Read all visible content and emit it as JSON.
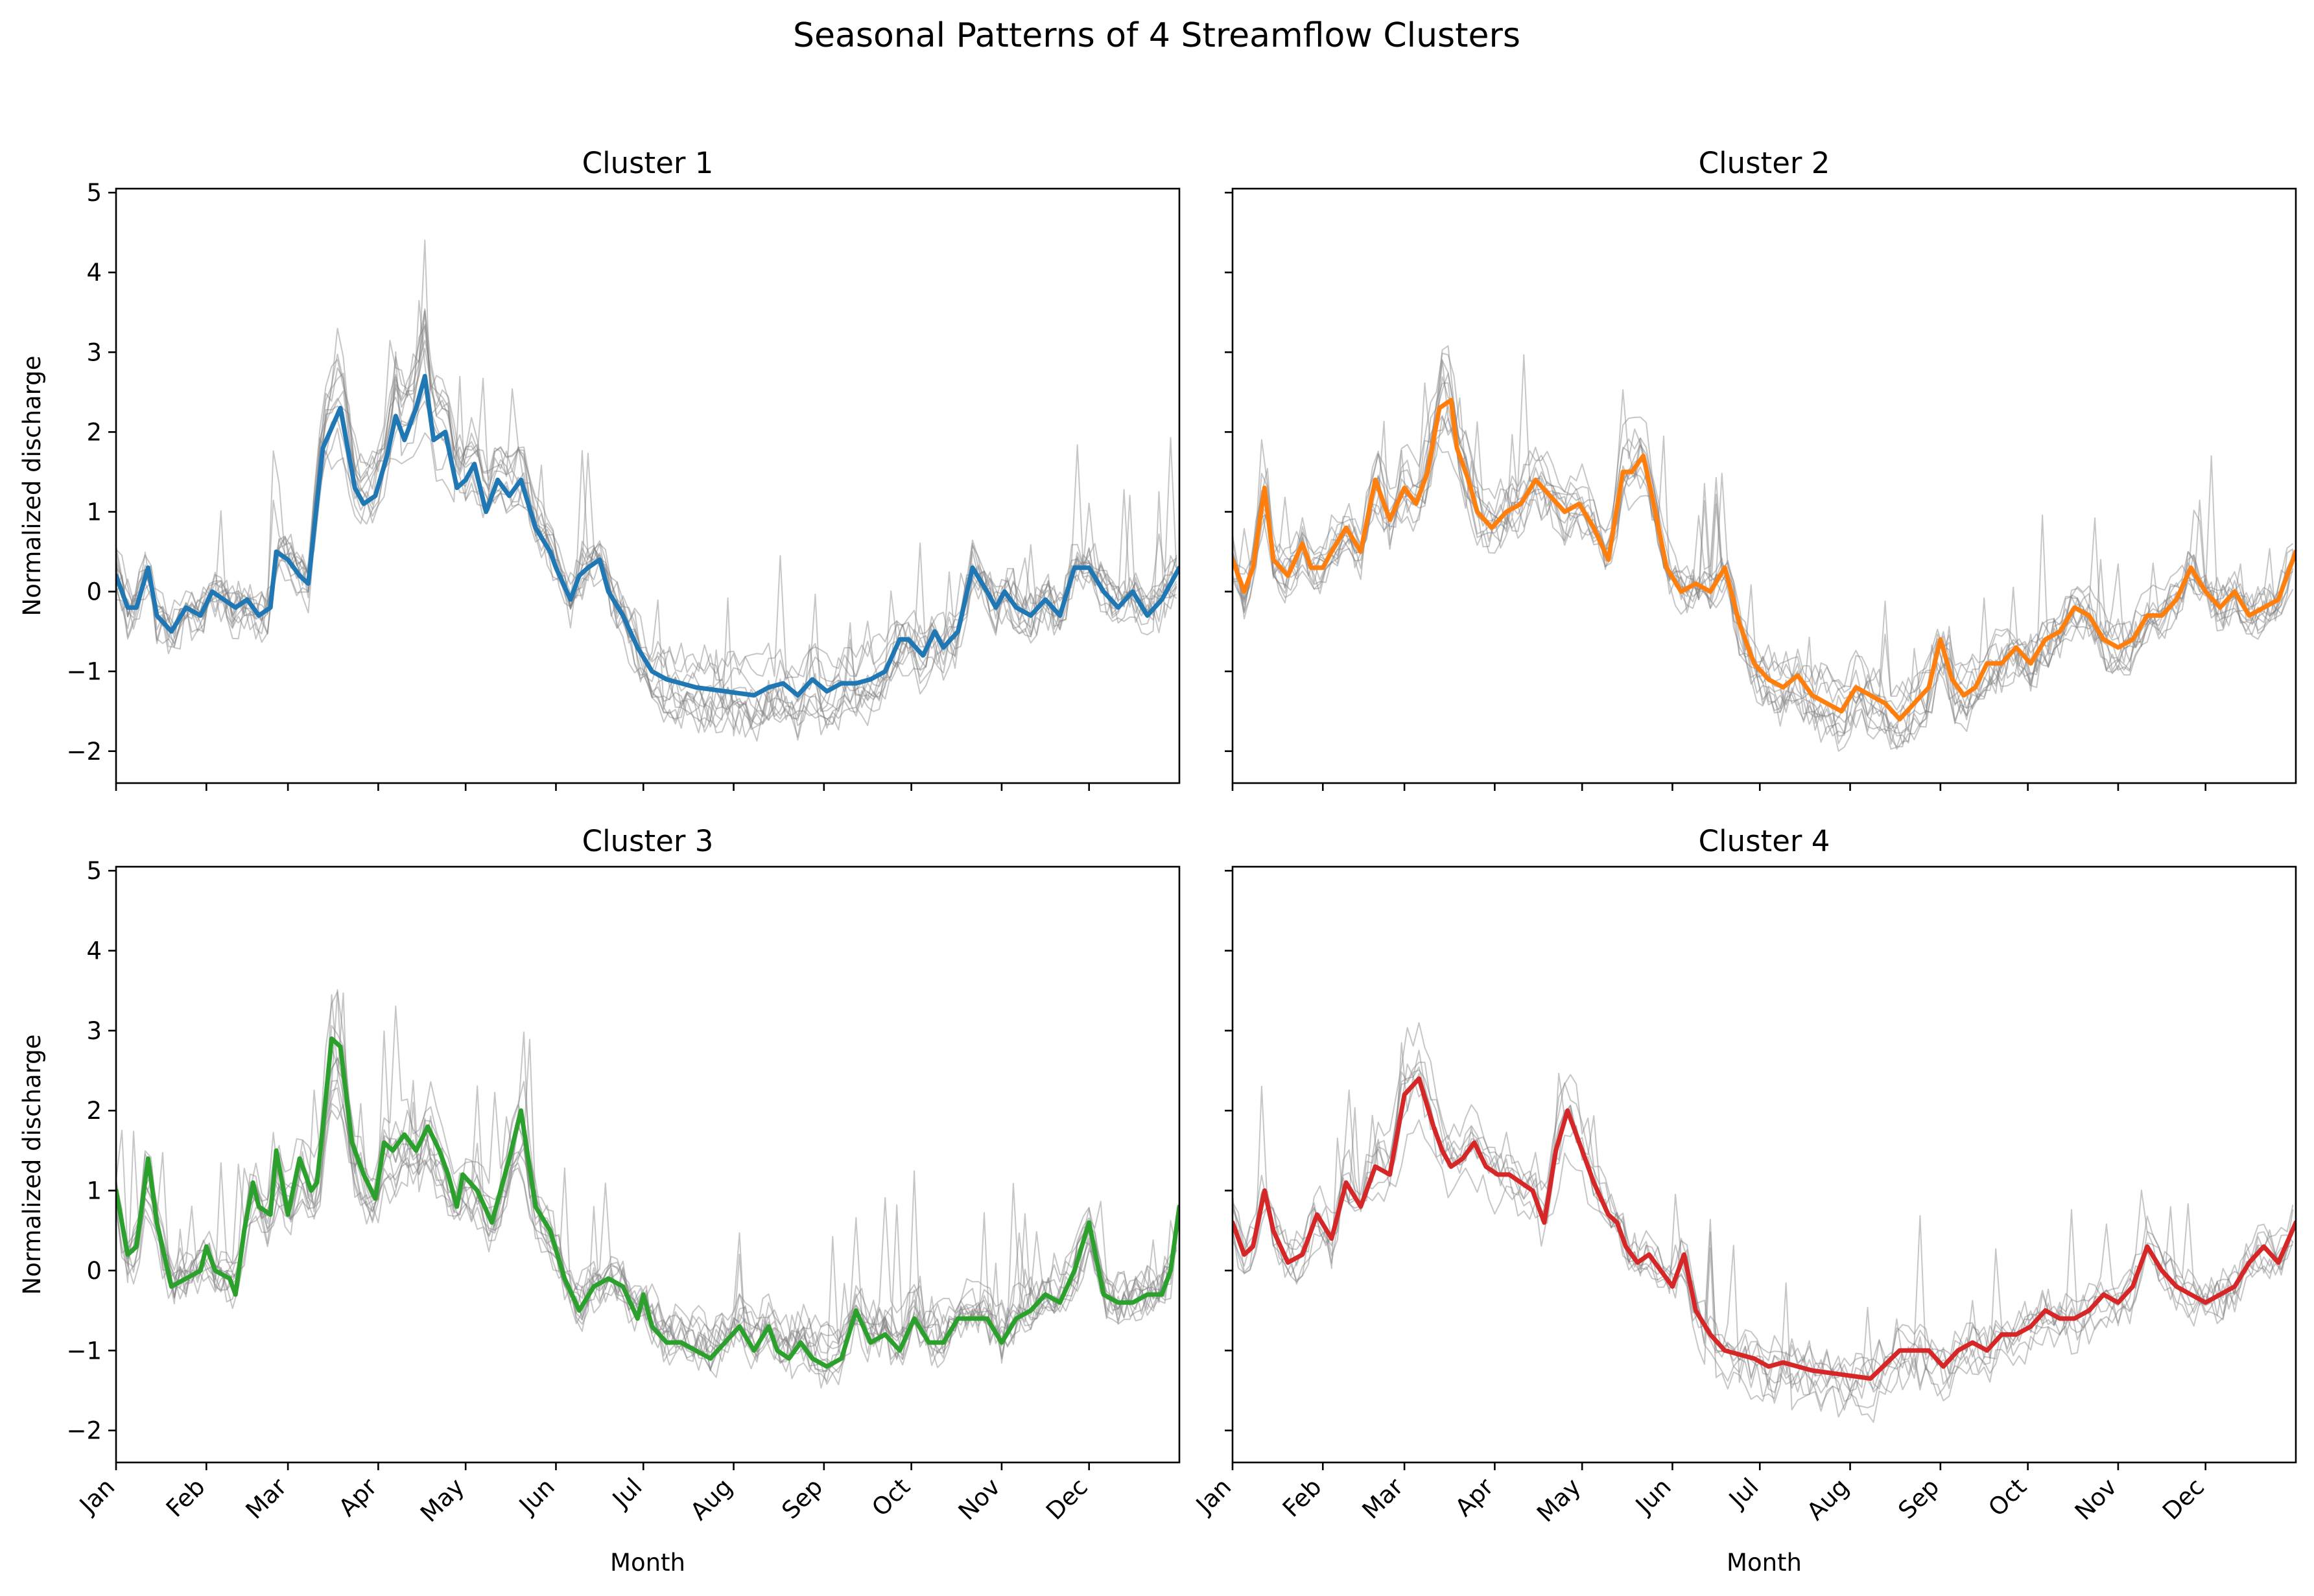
{
  "chart_data": {
    "type": "line",
    "title": "Seasonal Patterns of 4 Streamflow Clusters",
    "xlabel": "Month",
    "ylabel": "Normalized discharge",
    "x_tick_labels": [
      "Jan",
      "Feb",
      "Mar",
      "Apr",
      "May",
      "Jun",
      "Jul",
      "Aug",
      "Sep",
      "Oct",
      "Nov",
      "Dec"
    ],
    "x_tick_days": [
      1,
      32,
      60,
      91,
      121,
      152,
      182,
      213,
      244,
      274,
      305,
      335
    ],
    "xlim": [
      1,
      366
    ],
    "ylim": [
      -2.4,
      5.05
    ],
    "y_ticks": [
      -2,
      -1,
      0,
      1,
      2,
      3,
      4,
      5
    ],
    "y_tick_labels": [
      "−2",
      "−1",
      "0",
      "1",
      "2",
      "3",
      "4",
      "5"
    ],
    "grid": false,
    "legend": "none",
    "member_color": "#808080",
    "panels": [
      {
        "title": "Cluster 1",
        "color": "#1f77b4",
        "members": 12,
        "mean": {
          "x": [
            1,
            5,
            8,
            12,
            15,
            20,
            25,
            30,
            34,
            38,
            42,
            46,
            50,
            54,
            56,
            60,
            64,
            67,
            72,
            78,
            83,
            86,
            90,
            94,
            97,
            100,
            104,
            107,
            110,
            114,
            118,
            121,
            124,
            128,
            132,
            136,
            140,
            145,
            150,
            152,
            157,
            160,
            163,
            167,
            170,
            175,
            180,
            185,
            190,
            200,
            210,
            220,
            225,
            230,
            235,
            240,
            245,
            250,
            255,
            260,
            265,
            270,
            273,
            278,
            282,
            285,
            290,
            295,
            300,
            303,
            306,
            310,
            315,
            320,
            325,
            330,
            335,
            340,
            345,
            350,
            355,
            360,
            366
          ],
          "y": [
            0.2,
            -0.2,
            -0.2,
            0.3,
            -0.3,
            -0.5,
            -0.2,
            -0.3,
            0.0,
            -0.1,
            -0.2,
            -0.1,
            -0.3,
            -0.2,
            0.5,
            0.4,
            0.2,
            0.1,
            1.8,
            2.3,
            1.3,
            1.1,
            1.2,
            1.7,
            2.2,
            1.9,
            2.3,
            2.7,
            1.9,
            2.0,
            1.3,
            1.4,
            1.6,
            1.0,
            1.4,
            1.2,
            1.4,
            0.8,
            0.5,
            0.3,
            -0.1,
            0.2,
            0.3,
            0.4,
            0.0,
            -0.3,
            -0.7,
            -1.0,
            -1.1,
            -1.2,
            -1.25,
            -1.3,
            -1.2,
            -1.15,
            -1.3,
            -1.1,
            -1.25,
            -1.15,
            -1.15,
            -1.1,
            -1.0,
            -0.6,
            -0.6,
            -0.8,
            -0.5,
            -0.7,
            -0.5,
            0.3,
            0.0,
            -0.2,
            0.0,
            -0.2,
            -0.3,
            -0.1,
            -0.3,
            0.3,
            0.3,
            0.0,
            -0.2,
            0.0,
            -0.3,
            -0.1,
            0.3
          ]
        }
      },
      {
        "title": "Cluster 2",
        "color": "#ff7f0e",
        "members": 12,
        "mean": {
          "x": [
            1,
            5,
            8,
            12,
            15,
            20,
            25,
            28,
            32,
            35,
            40,
            45,
            50,
            55,
            60,
            64,
            68,
            72,
            76,
            78,
            82,
            85,
            90,
            95,
            100,
            105,
            110,
            115,
            120,
            125,
            130,
            135,
            138,
            142,
            145,
            150,
            155,
            160,
            165,
            170,
            175,
            180,
            185,
            190,
            195,
            200,
            205,
            210,
            215,
            220,
            225,
            230,
            235,
            240,
            244,
            248,
            252,
            256,
            260,
            265,
            270,
            275,
            280,
            285,
            290,
            295,
            300,
            305,
            310,
            315,
            320,
            325,
            330,
            335,
            340,
            345,
            350,
            355,
            360,
            366
          ],
          "y": [
            0.4,
            0.0,
            0.3,
            1.3,
            0.4,
            0.2,
            0.6,
            0.3,
            0.3,
            0.5,
            0.8,
            0.5,
            1.4,
            0.9,
            1.3,
            1.1,
            1.5,
            2.3,
            2.4,
            1.8,
            1.4,
            1.0,
            0.8,
            1.0,
            1.1,
            1.4,
            1.2,
            1.0,
            1.1,
            0.8,
            0.4,
            1.5,
            1.5,
            1.7,
            1.2,
            0.3,
            0.0,
            0.1,
            0.0,
            0.3,
            -0.4,
            -0.9,
            -1.1,
            -1.2,
            -1.05,
            -1.3,
            -1.4,
            -1.5,
            -1.2,
            -1.3,
            -1.4,
            -1.6,
            -1.4,
            -1.2,
            -0.6,
            -1.1,
            -1.3,
            -1.2,
            -0.9,
            -0.9,
            -0.7,
            -0.9,
            -0.6,
            -0.5,
            -0.2,
            -0.3,
            -0.6,
            -0.7,
            -0.6,
            -0.3,
            -0.3,
            -0.1,
            0.3,
            0.0,
            -0.2,
            0.0,
            -0.3,
            -0.2,
            -0.1,
            0.5
          ]
        }
      },
      {
        "title": "Cluster 3",
        "color": "#2ca02c",
        "members": 12,
        "mean": {
          "x": [
            1,
            3,
            5,
            8,
            12,
            15,
            20,
            25,
            30,
            32,
            35,
            40,
            42,
            45,
            48,
            50,
            54,
            56,
            60,
            64,
            68,
            70,
            72,
            75,
            78,
            82,
            86,
            90,
            93,
            96,
            100,
            104,
            108,
            112,
            115,
            118,
            120,
            125,
            130,
            133,
            136,
            140,
            145,
            150,
            155,
            160,
            165,
            170,
            175,
            180,
            182,
            185,
            190,
            195,
            200,
            205,
            210,
            215,
            220,
            225,
            228,
            232,
            236,
            240,
            245,
            250,
            255,
            260,
            265,
            270,
            275,
            280,
            285,
            290,
            295,
            300,
            305,
            310,
            315,
            320,
            325,
            330,
            335,
            340,
            345,
            350,
            355,
            360,
            363,
            366
          ],
          "y": [
            1.0,
            0.6,
            0.2,
            0.3,
            1.4,
            0.6,
            -0.2,
            -0.1,
            0.0,
            0.3,
            0.0,
            -0.1,
            -0.3,
            0.5,
            1.1,
            0.8,
            0.7,
            1.5,
            0.7,
            1.4,
            1.0,
            1.1,
            1.8,
            2.9,
            2.8,
            1.6,
            1.2,
            0.9,
            1.6,
            1.5,
            1.7,
            1.5,
            1.8,
            1.5,
            1.2,
            0.8,
            1.2,
            1.0,
            0.6,
            1.0,
            1.4,
            2.0,
            0.8,
            0.5,
            -0.1,
            -0.5,
            -0.2,
            -0.1,
            -0.2,
            -0.6,
            -0.3,
            -0.7,
            -0.9,
            -0.9,
            -1.0,
            -1.1,
            -0.9,
            -0.7,
            -1.0,
            -0.7,
            -1.0,
            -1.1,
            -0.9,
            -1.1,
            -1.2,
            -1.1,
            -0.5,
            -0.9,
            -0.8,
            -1.0,
            -0.6,
            -0.9,
            -0.9,
            -0.6,
            -0.6,
            -0.6,
            -0.9,
            -0.6,
            -0.5,
            -0.3,
            -0.4,
            0.0,
            0.6,
            -0.3,
            -0.4,
            -0.4,
            -0.3,
            -0.3,
            0.0,
            0.8
          ]
        }
      },
      {
        "title": "Cluster 4",
        "color": "#d62728",
        "members": 8,
        "mean": {
          "x": [
            1,
            5,
            8,
            12,
            15,
            20,
            25,
            30,
            35,
            40,
            45,
            50,
            55,
            60,
            65,
            70,
            73,
            76,
            80,
            84,
            88,
            92,
            96,
            100,
            104,
            108,
            112,
            116,
            120,
            125,
            130,
            133,
            136,
            140,
            144,
            148,
            152,
            156,
            160,
            165,
            170,
            175,
            180,
            185,
            190,
            200,
            210,
            220,
            230,
            240,
            245,
            250,
            255,
            260,
            265,
            270,
            275,
            280,
            285,
            290,
            295,
            300,
            305,
            310,
            315,
            320,
            325,
            330,
            335,
            340,
            345,
            350,
            355,
            360,
            366
          ],
          "y": [
            0.6,
            0.2,
            0.3,
            1.0,
            0.5,
            0.1,
            0.2,
            0.7,
            0.4,
            1.1,
            0.8,
            1.3,
            1.2,
            2.2,
            2.4,
            1.8,
            1.5,
            1.3,
            1.4,
            1.6,
            1.3,
            1.2,
            1.2,
            1.1,
            1.0,
            0.6,
            1.5,
            2.0,
            1.6,
            1.1,
            0.7,
            0.6,
            0.3,
            0.1,
            0.2,
            0.0,
            -0.2,
            0.2,
            -0.5,
            -0.8,
            -1.0,
            -1.05,
            -1.1,
            -1.2,
            -1.15,
            -1.25,
            -1.3,
            -1.35,
            -1.0,
            -1.0,
            -1.2,
            -1.0,
            -0.9,
            -1.0,
            -0.8,
            -0.8,
            -0.7,
            -0.5,
            -0.6,
            -0.6,
            -0.5,
            -0.3,
            -0.4,
            -0.2,
            0.3,
            0.0,
            -0.2,
            -0.3,
            -0.4,
            -0.3,
            -0.2,
            0.1,
            0.3,
            0.1,
            0.6
          ]
        }
      }
    ]
  }
}
